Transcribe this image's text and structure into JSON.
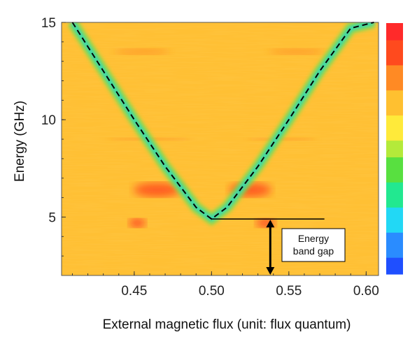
{
  "chart_data": {
    "type": "heatmap",
    "title": "",
    "xlabel": "External magnetic flux (unit: flux quantum)",
    "ylabel": "Energy (GHz)",
    "xlim": [
      0.403,
      0.608
    ],
    "ylim": [
      2.0,
      15.0
    ],
    "x_ticks": [
      {
        "value": 0.45,
        "label": "0.45"
      },
      {
        "value": 0.5,
        "label": "0.50"
      },
      {
        "value": 0.55,
        "label": "0.55"
      },
      {
        "value": 0.6,
        "label": "0.60"
      }
    ],
    "y_ticks": [
      {
        "value": 5,
        "label": "5"
      },
      {
        "value": 10,
        "label": "10"
      },
      {
        "value": 15,
        "label": "15"
      }
    ],
    "colorbar": {
      "colors": [
        "#1f4fff",
        "#2a8cff",
        "#22d8f5",
        "#22e890",
        "#58e040",
        "#b4ea3a",
        "#ffea3a",
        "#ffc030",
        "#ff8a24",
        "#ff4a1e",
        "#ff2a2a"
      ],
      "tick_labels": []
    },
    "series": [
      {
        "style": "dashed",
        "color": "#000000",
        "x": [
          0.41,
          0.43,
          0.45,
          0.47,
          0.49,
          0.5,
          0.51,
          0.53,
          0.55,
          0.57,
          0.59,
          0.605
        ],
        "y": [
          15.0,
          12.5,
          10.0,
          7.6,
          5.5,
          4.9,
          5.5,
          7.6,
          10.0,
          12.5,
          14.7,
          15.0
        ]
      }
    ],
    "annotation": {
      "text_lines": [
        "Energy",
        "band gap"
      ],
      "gap_at_flux": 0.5,
      "gap_energy": 4.9,
      "arrow_x": 0.538,
      "arrow_from": 2.0,
      "arrow_to": 4.9
    }
  }
}
